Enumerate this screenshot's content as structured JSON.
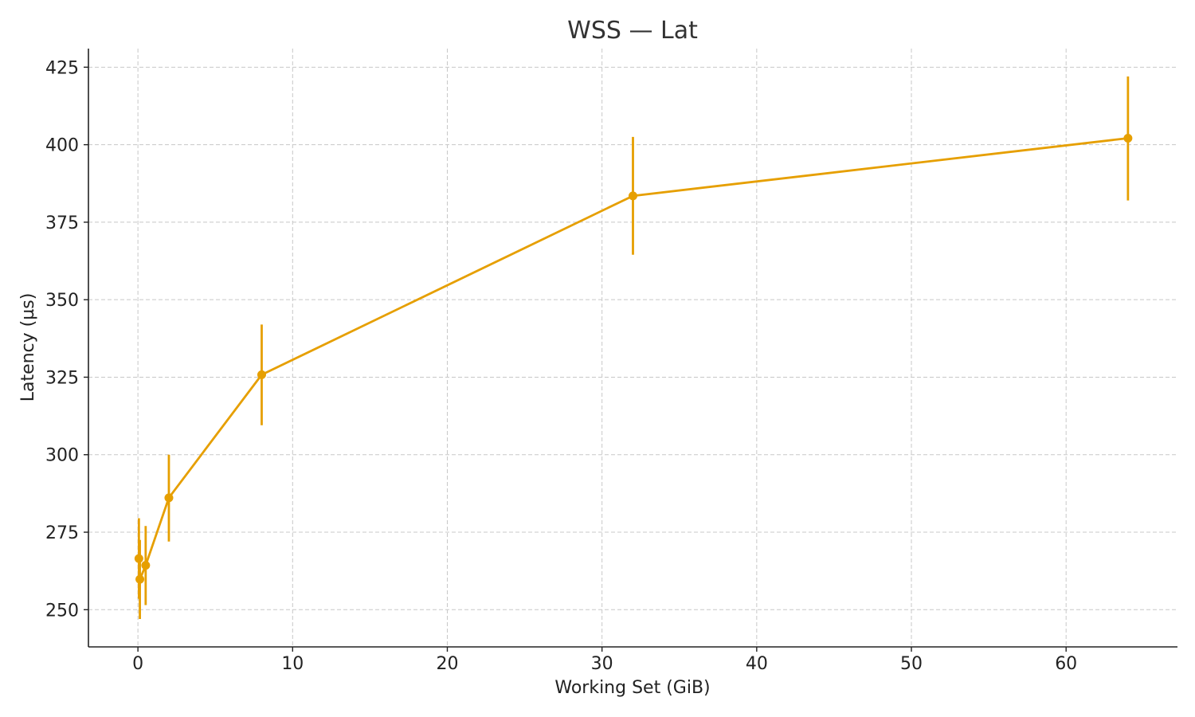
{
  "chart_data": {
    "type": "line",
    "title": "WSS — Lat",
    "xlabel": "Working Set (GiB)",
    "ylabel": "Latency (µs)",
    "xlim": [
      -3.2,
      67.2
    ],
    "ylim": [
      238,
      431
    ],
    "xticks": [
      0,
      10,
      20,
      30,
      40,
      50,
      60
    ],
    "yticks": [
      250,
      275,
      300,
      325,
      350,
      375,
      400,
      425
    ],
    "grid": true,
    "color": "#E69F00",
    "series": [
      {
        "x": [
          0.0625,
          0.125,
          0.5,
          2,
          8,
          32,
          64
        ],
        "y": [
          266.5,
          259.8,
          264.3,
          286.1,
          325.8,
          383.5,
          402.1
        ],
        "yerr_low": [
          253.5,
          247,
          251.5,
          272,
          309.5,
          364.5,
          382
        ],
        "yerr_high": [
          279.5,
          272.5,
          277,
          300,
          342,
          402.5,
          422
        ]
      }
    ]
  }
}
